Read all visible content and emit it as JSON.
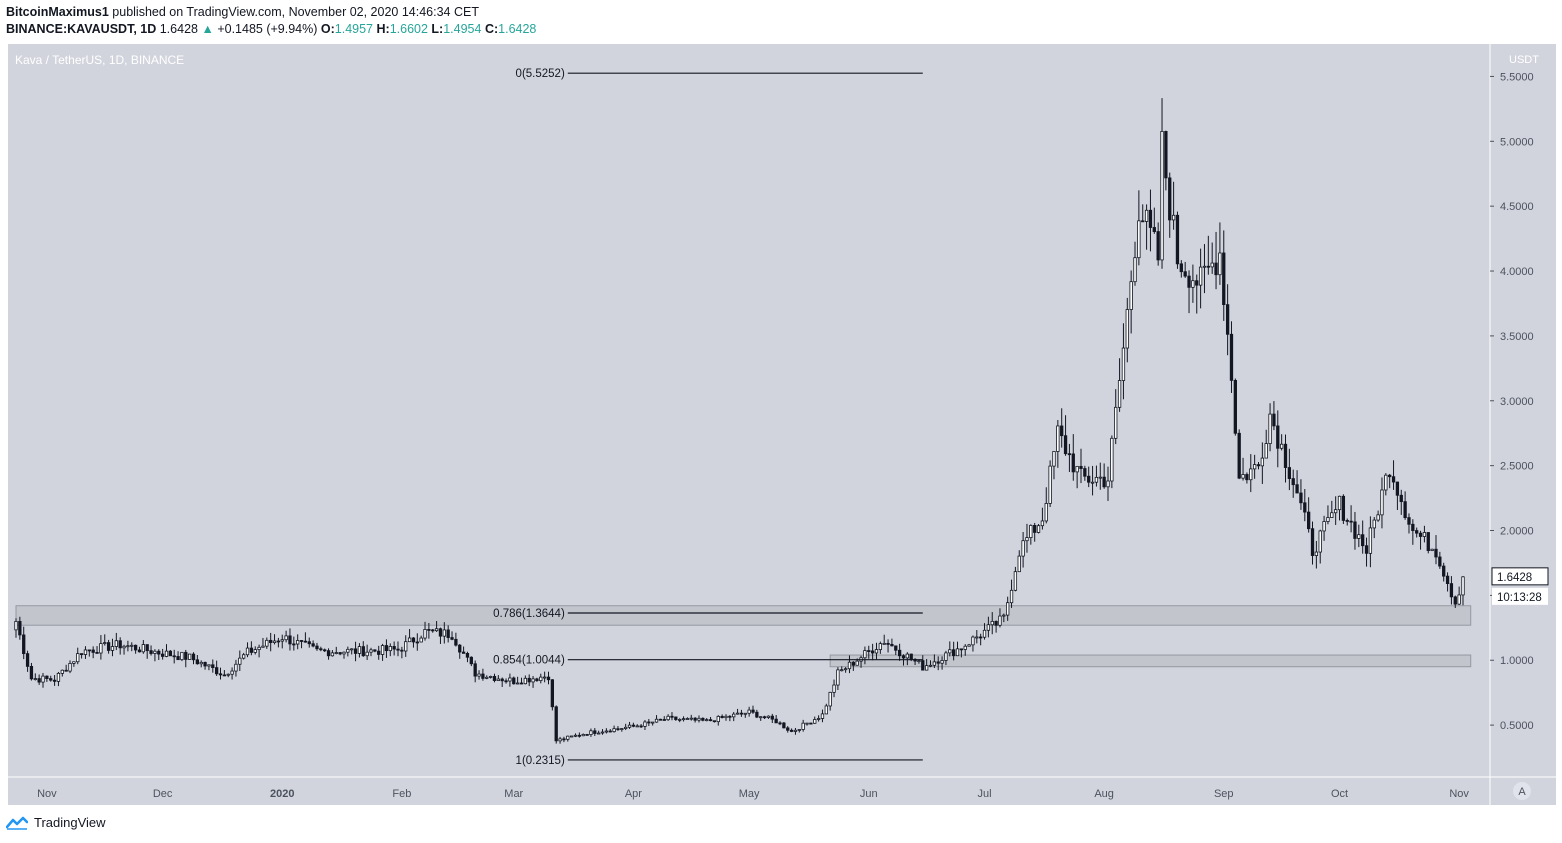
{
  "header": {
    "author": "BitcoinMaximus1",
    "published": "published on TradingView.com, November 02, 2020 14:46:34 CET",
    "symbol": "BINANCE:KAVAUSDT, 1D",
    "last": "1.6428",
    "change_arrow": "▲",
    "change": "+0.1485 (+9.94%)",
    "o_label": "O:",
    "o_value": "1.4957",
    "h_label": "H:",
    "h_value": "1.6602",
    "l_label": "L:",
    "l_value": "1.4954",
    "c_label": "C:",
    "c_value": "1.6428"
  },
  "footer": {
    "brand": "TradingView"
  },
  "colors": {
    "plot_bg": "#d1d4dc",
    "candle": "#131722",
    "axis_text": "#4c525e",
    "zone_fill": "#c2c5cc"
  },
  "chart_data": {
    "type": "candlestick",
    "title": "Kava / TetherUS, 1D, BINANCE",
    "price_axis_label": "USDT",
    "ylim": [
      0.1,
      5.75
    ],
    "y_ticks": [
      0.5,
      1.0,
      1.5,
      2.0,
      2.5,
      3.0,
      3.5,
      4.0,
      4.5,
      5.0,
      5.5
    ],
    "y_tick_labels": [
      "0.5000",
      "1.0000",
      "1.5000",
      "2.0000",
      "2.5000",
      "3.0000",
      "3.5000",
      "4.0000",
      "4.5000",
      "5.0000",
      "5.5000"
    ],
    "x_labels": [
      {
        "label": "Nov",
        "date": "2019-11-01"
      },
      {
        "label": "Dec",
        "date": "2019-12-01"
      },
      {
        "label": "2020",
        "date": "2020-01-01"
      },
      {
        "label": "Feb",
        "date": "2020-02-01"
      },
      {
        "label": "Mar",
        "date": "2020-03-01"
      },
      {
        "label": "Apr",
        "date": "2020-04-01"
      },
      {
        "label": "May",
        "date": "2020-05-01"
      },
      {
        "label": "Jun",
        "date": "2020-06-01"
      },
      {
        "label": "Jul",
        "date": "2020-07-01"
      },
      {
        "label": "Aug",
        "date": "2020-08-01"
      },
      {
        "label": "Sep",
        "date": "2020-09-01"
      },
      {
        "label": "Oct",
        "date": "2020-10-01"
      },
      {
        "label": "Nov",
        "date": "2020-11-01"
      }
    ],
    "date_range": [
      "2019-10-24",
      "2020-11-02"
    ],
    "close_path": [
      {
        "date": "2019-10-24",
        "close": 1.3
      },
      {
        "date": "2019-10-28",
        "close": 0.86
      },
      {
        "date": "2019-11-03",
        "close": 0.85
      },
      {
        "date": "2019-11-10",
        "close": 1.07
      },
      {
        "date": "2019-11-20",
        "close": 1.12
      },
      {
        "date": "2019-11-30",
        "close": 1.06
      },
      {
        "date": "2019-12-08",
        "close": 1.02
      },
      {
        "date": "2019-12-17",
        "close": 0.89
      },
      {
        "date": "2019-12-23",
        "close": 1.06
      },
      {
        "date": "2020-01-01",
        "close": 1.18
      },
      {
        "date": "2020-01-10",
        "close": 1.07
      },
      {
        "date": "2020-01-20",
        "close": 1.07
      },
      {
        "date": "2020-01-31",
        "close": 1.08
      },
      {
        "date": "2020-02-07",
        "close": 1.22
      },
      {
        "date": "2020-02-14",
        "close": 1.2
      },
      {
        "date": "2020-02-20",
        "close": 0.9
      },
      {
        "date": "2020-03-01",
        "close": 0.84
      },
      {
        "date": "2020-03-10",
        "close": 0.88
      },
      {
        "date": "2020-03-12",
        "close": 0.38
      },
      {
        "date": "2020-03-20",
        "close": 0.44
      },
      {
        "date": "2020-04-01",
        "close": 0.49
      },
      {
        "date": "2020-04-10",
        "close": 0.55
      },
      {
        "date": "2020-04-20",
        "close": 0.53
      },
      {
        "date": "2020-05-01",
        "close": 0.6
      },
      {
        "date": "2020-05-08",
        "close": 0.53
      },
      {
        "date": "2020-05-12",
        "close": 0.45
      },
      {
        "date": "2020-05-20",
        "close": 0.58
      },
      {
        "date": "2020-05-24",
        "close": 0.9
      },
      {
        "date": "2020-06-05",
        "close": 1.15
      },
      {
        "date": "2020-06-15",
        "close": 0.95
      },
      {
        "date": "2020-06-25",
        "close": 1.1
      },
      {
        "date": "2020-07-06",
        "close": 1.32
      },
      {
        "date": "2020-07-10",
        "close": 1.85
      },
      {
        "date": "2020-07-16",
        "close": 2.1
      },
      {
        "date": "2020-07-20",
        "close": 2.75
      },
      {
        "date": "2020-07-26",
        "close": 2.4
      },
      {
        "date": "2020-08-02",
        "close": 2.4
      },
      {
        "date": "2020-08-06",
        "close": 3.4
      },
      {
        "date": "2020-08-10",
        "close": 4.5
      },
      {
        "date": "2020-08-15",
        "close": 4.1
      },
      {
        "date": "2020-08-16",
        "close": 4.95
      },
      {
        "date": "2020-08-20",
        "close": 4.1
      },
      {
        "date": "2020-08-26",
        "close": 3.9
      },
      {
        "date": "2020-08-31",
        "close": 4.15
      },
      {
        "date": "2020-09-03",
        "close": 3.2
      },
      {
        "date": "2020-09-05",
        "close": 2.4
      },
      {
        "date": "2020-09-10",
        "close": 2.5
      },
      {
        "date": "2020-09-13",
        "close": 2.9
      },
      {
        "date": "2020-09-20",
        "close": 2.3
      },
      {
        "date": "2020-09-24",
        "close": 1.85
      },
      {
        "date": "2020-10-01",
        "close": 2.2
      },
      {
        "date": "2020-10-08",
        "close": 1.85
      },
      {
        "date": "2020-10-14",
        "close": 2.5
      },
      {
        "date": "2020-10-20",
        "close": 2.0
      },
      {
        "date": "2020-10-26",
        "close": 1.85
      },
      {
        "date": "2020-10-31",
        "close": 1.45
      },
      {
        "date": "2020-11-02",
        "close": 1.6428
      }
    ],
    "fibonacci": {
      "levels": [
        {
          "label": "0(5.5252)",
          "value": 5.5252
        },
        {
          "label": "0.786(1.3644)",
          "value": 1.3644
        },
        {
          "label": "0.854(1.0044)",
          "value": 1.0044
        },
        {
          "label": "1(0.2315)",
          "value": 0.2315
        }
      ],
      "start_date": "2020-03-15",
      "end_date": "2020-06-15"
    },
    "zones": [
      {
        "from": 1.27,
        "to": 1.42,
        "start_date": "2019-10-24",
        "end_date": "2020-11-04"
      },
      {
        "from": 0.95,
        "to": 1.04,
        "start_date": "2020-05-22",
        "end_date": "2020-11-04"
      }
    ],
    "last_price_label": "1.6428",
    "countdown_label": "10:13:28",
    "scale_button": "A"
  }
}
